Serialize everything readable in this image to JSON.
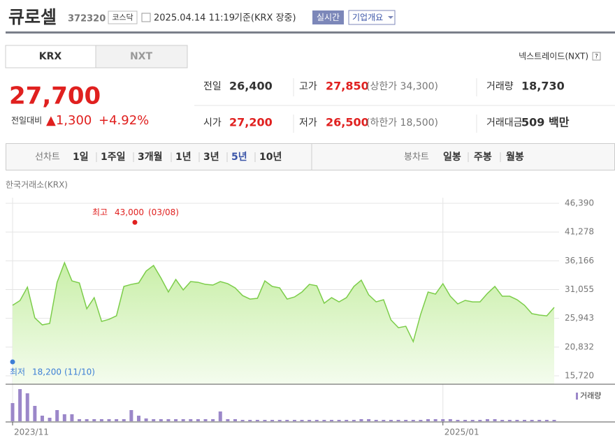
{
  "header": {
    "name": "큐로셀",
    "code": "372320",
    "market": "코스닥",
    "datetime": "2025.04.14 11:19",
    "basis": "기준(KRX 장중)",
    "realtime": "실시간",
    "overview": "기업개요"
  },
  "tabs": [
    "KRX",
    "NXT"
  ],
  "nxt_link": "넥스트레이드(NXT)",
  "help": "?",
  "quote": {
    "price": "27,700",
    "change_label": "전일대비",
    "change": "▲1,300",
    "rate": "+4.92%",
    "rows": [
      [
        [
          "전일",
          "26,400",
          ""
        ],
        [
          "고가",
          "27,850",
          "(상한가 34,300)"
        ],
        [
          "거래량",
          "18,730",
          ""
        ]
      ],
      [
        [
          "시가",
          "27,200",
          ""
        ],
        [
          "저가",
          "26,500",
          "(하한가 18,500)"
        ],
        [
          "거래대금",
          "509 백만",
          ""
        ]
      ]
    ]
  },
  "toolbar": {
    "line_label": "선차트",
    "periods": [
      "1일",
      "1주일",
      "3개월",
      "1년",
      "3년",
      "5년",
      "10년"
    ],
    "selected": 5,
    "candle_label": "봉차트",
    "candles": [
      "일봉",
      "주봉",
      "월봉"
    ]
  },
  "market_label": "한국거래소(KRX)",
  "chart_data": {
    "type": "area",
    "color": "#7ccd4a",
    "categories": [
      "2023/11",
      null,
      null,
      null,
      null,
      null,
      null,
      null,
      null,
      null,
      null,
      null,
      null,
      null,
      null,
      null,
      null,
      null,
      null,
      null,
      null,
      null,
      null,
      null,
      null,
      null,
      null,
      null,
      null,
      null,
      null,
      null,
      null,
      null,
      null,
      null,
      null,
      null,
      null,
      null,
      null,
      null,
      null,
      null,
      null,
      null,
      null,
      null,
      null,
      null,
      null,
      null,
      null,
      null,
      null,
      null,
      null,
      null,
      "2025/01",
      null,
      null,
      null,
      null,
      null,
      null,
      null,
      null,
      null,
      null,
      null,
      null,
      null,
      null,
      null
    ],
    "values": [
      28260,
      29100,
      31490,
      26020,
      24780,
      25030,
      32350,
      35830,
      32600,
      32230,
      27640,
      29620,
      25400,
      25770,
      26390,
      31610,
      31980,
      32230,
      34340,
      35340,
      33100,
      30620,
      32850,
      30990,
      32480,
      32350,
      31980,
      31860,
      32480,
      32100,
      31360,
      29990,
      29370,
      29500,
      32600,
      31610,
      31360,
      29370,
      29740,
      30620,
      31980,
      31730,
      28630,
      29620,
      28870,
      29620,
      31610,
      32730,
      30120,
      28870,
      29250,
      25650,
      24280,
      24530,
      21800,
      26650,
      30620,
      30250,
      32100,
      29870,
      28510,
      29130,
      28870,
      28870,
      30370,
      31610,
      29870,
      29870,
      29250,
      28260,
      26770,
      26520,
      26390,
      27890
    ],
    "ylim": [
      15720,
      46390
    ],
    "yticks": [
      {
        "value": 15720,
        "label": "15,720"
      },
      {
        "value": 20832,
        "label": "20,832"
      },
      {
        "value": 25943,
        "label": "25,943"
      },
      {
        "value": 31055,
        "label": "31,055"
      },
      {
        "value": 36166,
        "label": "36,166"
      },
      {
        "value": 41278,
        "label": "41,278"
      },
      {
        "value": 46390,
        "label": "46,390"
      }
    ],
    "high": {
      "label": "최고",
      "value": 43000,
      "value_label": "43,000",
      "date": "(03/08)",
      "color": "#e0201f"
    },
    "low": {
      "label": "최저",
      "value": 18200,
      "value_label": "18,200",
      "date": "(11/10)",
      "color": "#3d7fd6"
    },
    "volume": {
      "name": "거래량",
      "color": "#9b87c9",
      "vlim": [
        0,
        50
      ],
      "values": [
        26,
        46,
        40,
        22,
        8,
        5,
        16,
        10,
        10,
        3,
        3,
        3,
        3,
        3,
        3,
        3,
        16,
        8,
        4,
        3,
        3,
        3,
        3,
        3,
        3,
        3,
        3,
        3,
        14,
        3,
        3,
        2,
        2,
        2,
        2,
        2,
        2,
        2,
        2,
        2,
        2,
        2,
        2,
        2,
        2,
        2,
        2,
        3,
        3,
        2,
        2,
        2,
        2,
        2,
        2,
        2,
        3,
        3,
        3,
        3,
        2,
        2,
        2,
        2,
        3,
        3,
        2,
        2,
        2,
        2,
        2,
        2,
        2,
        2
      ]
    }
  }
}
